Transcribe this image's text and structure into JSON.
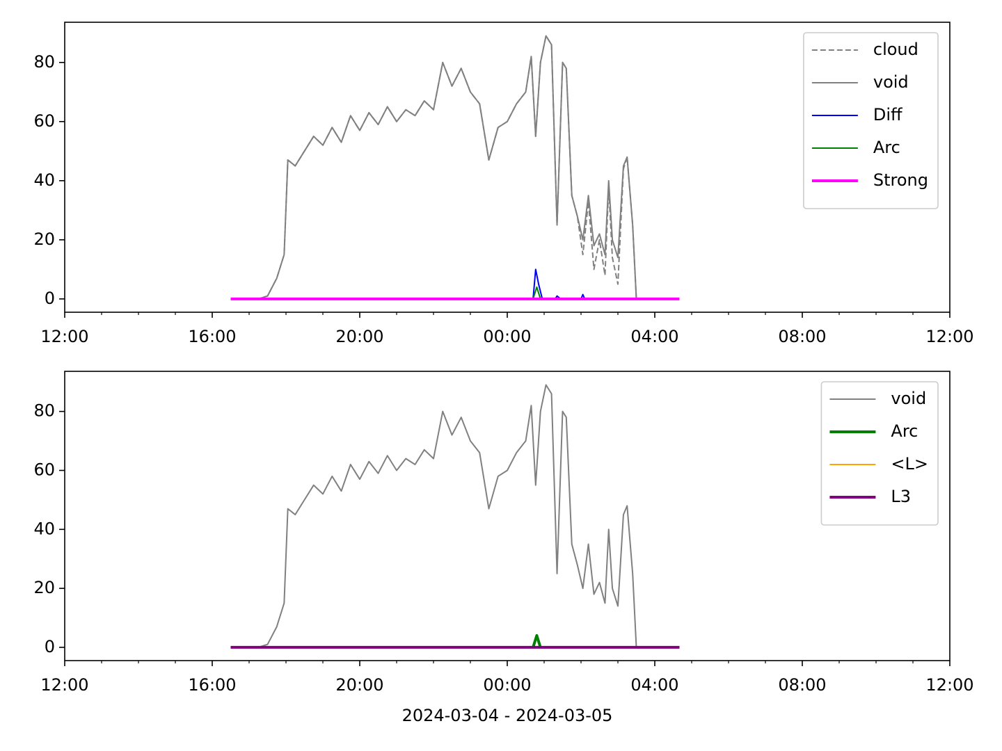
{
  "chart_data": [
    {
      "type": "line",
      "xlim": [
        0,
        24
      ],
      "ylim": [
        -4.5,
        93.6
      ],
      "xticks": [
        {
          "value": 0,
          "label": "12:00"
        },
        {
          "value": 4,
          "label": "16:00"
        },
        {
          "value": 8,
          "label": "20:00"
        },
        {
          "value": 12,
          "label": "00:00"
        },
        {
          "value": 16,
          "label": "04:00"
        },
        {
          "value": 20,
          "label": "08:00"
        },
        {
          "value": 24,
          "label": "12:00"
        }
      ],
      "xminorticks": [
        1,
        2,
        3,
        5,
        6,
        7,
        9,
        10,
        11,
        13,
        14,
        15,
        17,
        18,
        19,
        21,
        22,
        23
      ],
      "yticks": [
        0,
        20,
        40,
        60,
        80
      ],
      "legend": "upper right",
      "series": [
        {
          "name": "cloud",
          "color": "#808080",
          "dash": true,
          "width": 2,
          "x": [
            4.5,
            4.75,
            5,
            5.25,
            5.5,
            5.75,
            5.95,
            6.05,
            6.25,
            6.5,
            6.75,
            7,
            7.25,
            7.5,
            7.75,
            8,
            8.25,
            8.5,
            8.75,
            9,
            9.25,
            9.5,
            9.75,
            10,
            10.25,
            10.5,
            10.75,
            11,
            11.25,
            11.5,
            11.75,
            12,
            12.25,
            12.5,
            12.65,
            12.77,
            12.9,
            13.05,
            13.2,
            13.35,
            13.5,
            13.6,
            13.75,
            13.9,
            14.05,
            14.2,
            14.35,
            14.5,
            14.65,
            14.75,
            14.85,
            15,
            15.15,
            15.25,
            15.4,
            15.5,
            15.6
          ],
          "values": [
            0,
            0,
            0,
            0,
            1,
            7,
            15,
            47,
            45,
            50,
            55,
            52,
            58,
            53,
            62,
            57,
            63,
            59,
            65,
            60,
            64,
            62,
            67,
            64,
            80,
            72,
            78,
            70,
            66,
            47,
            58,
            60,
            66,
            70,
            82,
            55,
            80,
            89,
            86,
            25,
            80,
            78,
            35,
            28,
            15,
            33,
            10,
            20,
            8,
            38,
            14,
            5,
            44,
            48,
            25,
            0,
            0
          ]
        },
        {
          "name": "void",
          "color": "#808080",
          "dash": false,
          "width": 2,
          "x": [
            4.5,
            4.75,
            5,
            5.25,
            5.5,
            5.75,
            5.95,
            6.05,
            6.25,
            6.5,
            6.75,
            7,
            7.25,
            7.5,
            7.75,
            8,
            8.25,
            8.5,
            8.75,
            9,
            9.25,
            9.5,
            9.75,
            10,
            10.25,
            10.5,
            10.75,
            11,
            11.25,
            11.5,
            11.75,
            12,
            12.25,
            12.5,
            12.65,
            12.77,
            12.9,
            13.05,
            13.2,
            13.35,
            13.5,
            13.6,
            13.75,
            13.9,
            14.05,
            14.2,
            14.35,
            14.5,
            14.65,
            14.75,
            14.85,
            15,
            15.15,
            15.25,
            15.4,
            15.5,
            15.6
          ],
          "values": [
            0,
            0,
            0,
            0,
            1,
            7,
            15,
            47,
            45,
            50,
            55,
            52,
            58,
            53,
            62,
            57,
            63,
            59,
            65,
            60,
            64,
            62,
            67,
            64,
            80,
            72,
            78,
            70,
            66,
            47,
            58,
            60,
            66,
            70,
            82,
            55,
            80,
            89,
            86,
            25,
            80,
            78,
            35,
            28,
            20,
            35,
            18,
            22,
            15,
            40,
            20,
            14,
            45,
            48,
            25,
            0,
            0
          ]
        },
        {
          "name": "Diff",
          "color": "#0000ff",
          "dash": false,
          "width": 2,
          "x": [
            12.5,
            12.7,
            12.77,
            12.85,
            12.95,
            13.3,
            13.35,
            13.45,
            14.0,
            14.05,
            14.1
          ],
          "values": [
            0,
            0,
            10,
            5,
            0,
            0,
            1,
            0,
            0,
            1.5,
            0
          ]
        },
        {
          "name": "Arc",
          "color": "#008000",
          "dash": false,
          "width": 2,
          "x": [
            12.7,
            12.8,
            12.9
          ],
          "values": [
            0,
            4,
            0
          ]
        },
        {
          "name": "Strong",
          "color": "#ff00ff",
          "dash": false,
          "width": 4,
          "x": [
            4.5,
            16.67
          ],
          "values": [
            0,
            0
          ]
        }
      ]
    },
    {
      "type": "line",
      "xlim": [
        0,
        24
      ],
      "ylim": [
        -4.5,
        93.6
      ],
      "xticks": [
        {
          "value": 0,
          "label": "12:00"
        },
        {
          "value": 4,
          "label": "16:00"
        },
        {
          "value": 8,
          "label": "20:00"
        },
        {
          "value": 12,
          "label": "00:00"
        },
        {
          "value": 16,
          "label": "04:00"
        },
        {
          "value": 20,
          "label": "08:00"
        },
        {
          "value": 24,
          "label": "12:00"
        }
      ],
      "xminorticks": [
        1,
        2,
        3,
        5,
        6,
        7,
        9,
        10,
        11,
        13,
        14,
        15,
        17,
        18,
        19,
        21,
        22,
        23
      ],
      "yticks": [
        0,
        20,
        40,
        60,
        80
      ],
      "legend": "upper right",
      "xlabel": "2024-03-04 - 2024-03-05",
      "series": [
        {
          "name": "void",
          "color": "#808080",
          "dash": false,
          "width": 2,
          "x": [
            4.5,
            4.75,
            5,
            5.25,
            5.5,
            5.75,
            5.95,
            6.05,
            6.25,
            6.5,
            6.75,
            7,
            7.25,
            7.5,
            7.75,
            8,
            8.25,
            8.5,
            8.75,
            9,
            9.25,
            9.5,
            9.75,
            10,
            10.25,
            10.5,
            10.75,
            11,
            11.25,
            11.5,
            11.75,
            12,
            12.25,
            12.5,
            12.65,
            12.77,
            12.9,
            13.05,
            13.2,
            13.35,
            13.5,
            13.6,
            13.75,
            13.9,
            14.05,
            14.2,
            14.35,
            14.5,
            14.65,
            14.75,
            14.85,
            15,
            15.15,
            15.25,
            15.4,
            15.5,
            15.6
          ],
          "values": [
            0,
            0,
            0,
            0,
            1,
            7,
            15,
            47,
            45,
            50,
            55,
            52,
            58,
            53,
            62,
            57,
            63,
            59,
            65,
            60,
            64,
            62,
            67,
            64,
            80,
            72,
            78,
            70,
            66,
            47,
            58,
            60,
            66,
            70,
            82,
            55,
            80,
            89,
            86,
            25,
            80,
            78,
            35,
            28,
            20,
            35,
            18,
            22,
            15,
            40,
            20,
            14,
            45,
            48,
            25,
            0,
            0
          ]
        },
        {
          "name": "Arc",
          "color": "#008000",
          "dash": false,
          "width": 4,
          "x": [
            12.7,
            12.8,
            12.9
          ],
          "values": [
            0,
            4,
            0
          ]
        },
        {
          "name": "<L>",
          "color": "#ffa500",
          "dash": false,
          "width": 2,
          "x": [
            4.5,
            16.67
          ],
          "values": [
            0,
            0
          ]
        },
        {
          "name": "L3",
          "color": "#800080",
          "dash": false,
          "width": 4,
          "x": [
            4.5,
            16.67
          ],
          "values": [
            0,
            0
          ]
        }
      ]
    }
  ]
}
